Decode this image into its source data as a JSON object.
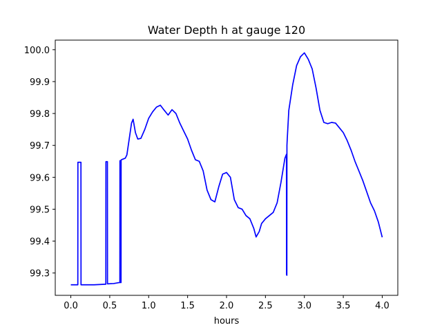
{
  "chart_data": {
    "type": "line",
    "title": "Water Depth h at gauge 120",
    "xlabel": "hours",
    "ylabel": "",
    "xlim": [
      -0.2,
      4.2
    ],
    "ylim": [
      99.23,
      100.03
    ],
    "grid": false,
    "legend": "none",
    "xticks": [
      0.0,
      0.5,
      1.0,
      1.5,
      2.0,
      2.5,
      3.0,
      3.5,
      4.0
    ],
    "xtick_labels": [
      "0.0",
      "0.5",
      "1.0",
      "1.5",
      "2.0",
      "2.5",
      "3.0",
      "3.5",
      "4.0"
    ],
    "yticks": [
      99.3,
      99.4,
      99.5,
      99.6,
      99.7,
      99.8,
      99.9,
      100.0
    ],
    "ytick_labels": [
      "99.3",
      "99.4",
      "99.5",
      "99.6",
      "99.7",
      "99.8",
      "99.9",
      "100.0"
    ],
    "series": [
      {
        "color": "#0000ff",
        "x": [
          0.0,
          0.09,
          0.091,
          0.13,
          0.131,
          0.3,
          0.45,
          0.451,
          0.47,
          0.471,
          0.55,
          0.62,
          0.63,
          0.631,
          0.64,
          0.641,
          0.645,
          0.646,
          0.65,
          0.7,
          0.72,
          0.75,
          0.78,
          0.8,
          0.83,
          0.86,
          0.9,
          0.95,
          1.0,
          1.05,
          1.1,
          1.15,
          1.2,
          1.25,
          1.3,
          1.35,
          1.4,
          1.45,
          1.5,
          1.55,
          1.6,
          1.65,
          1.7,
          1.75,
          1.8,
          1.85,
          1.9,
          1.95,
          2.0,
          2.05,
          2.1,
          2.15,
          2.2,
          2.25,
          2.3,
          2.35,
          2.38,
          2.42,
          2.45,
          2.5,
          2.55,
          2.6,
          2.65,
          2.7,
          2.75,
          2.77,
          2.771,
          2.775,
          2.776,
          2.78,
          2.8,
          2.85,
          2.9,
          2.95,
          3.0,
          3.05,
          3.1,
          3.15,
          3.2,
          3.25,
          3.3,
          3.35,
          3.4,
          3.45,
          3.5,
          3.55,
          3.6,
          3.65,
          3.7,
          3.75,
          3.8,
          3.85,
          3.9,
          3.95,
          4.0
        ],
        "y": [
          99.263,
          99.263,
          99.647,
          99.647,
          99.263,
          99.263,
          99.265,
          99.649,
          99.649,
          99.266,
          99.267,
          99.27,
          99.27,
          99.652,
          99.652,
          99.27,
          99.27,
          99.654,
          99.655,
          99.66,
          99.67,
          99.72,
          99.77,
          99.782,
          99.74,
          99.72,
          99.722,
          99.75,
          99.785,
          99.805,
          99.82,
          99.826,
          99.81,
          99.795,
          99.812,
          99.8,
          99.77,
          99.745,
          99.72,
          99.685,
          99.655,
          99.65,
          99.62,
          99.56,
          99.53,
          99.523,
          99.57,
          99.61,
          99.615,
          99.6,
          99.53,
          99.505,
          99.5,
          99.48,
          99.47,
          99.44,
          99.413,
          99.43,
          99.455,
          99.47,
          99.48,
          99.49,
          99.52,
          99.585,
          99.66,
          99.672,
          99.295,
          99.293,
          99.7,
          99.72,
          99.81,
          99.89,
          99.95,
          99.978,
          99.99,
          99.97,
          99.94,
          99.88,
          99.81,
          99.772,
          99.768,
          99.772,
          99.77,
          99.755,
          99.74,
          99.715,
          99.685,
          99.65,
          99.62,
          99.59,
          99.555,
          99.52,
          99.495,
          99.46,
          99.412
        ]
      }
    ]
  }
}
